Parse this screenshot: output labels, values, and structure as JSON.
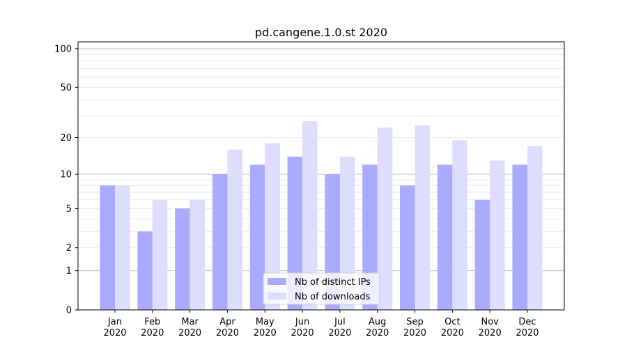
{
  "chart_data": {
    "type": "bar",
    "title": "pd.cangene.1.0.st 2020",
    "xlabel": "",
    "ylabel": "",
    "yscale": "symlog (log10(1+y))",
    "ylim": [
      0,
      113
    ],
    "yticks": [
      0,
      1,
      2,
      5,
      10,
      20,
      50,
      100
    ],
    "grid": true,
    "legend_position": "bottom-center",
    "categories": [
      "Jan\n2020",
      "Feb\n2020",
      "Mar\n2020",
      "Apr\n2020",
      "May\n2020",
      "Jun\n2020",
      "Jul\n2020",
      "Aug\n2020",
      "Sep\n2020",
      "Oct\n2020",
      "Nov\n2020",
      "Dec\n2020"
    ],
    "series": [
      {
        "name": "Nb of distinct IPs",
        "color": "#aaaaff",
        "values": [
          8,
          3,
          5,
          10,
          12,
          14,
          10,
          12,
          8,
          12,
          6,
          12
        ]
      },
      {
        "name": "Nb of downloads",
        "color": "#ddddff",
        "values": [
          8,
          6,
          6,
          16,
          18,
          27,
          14,
          24,
          25,
          19,
          13,
          17
        ]
      }
    ]
  }
}
